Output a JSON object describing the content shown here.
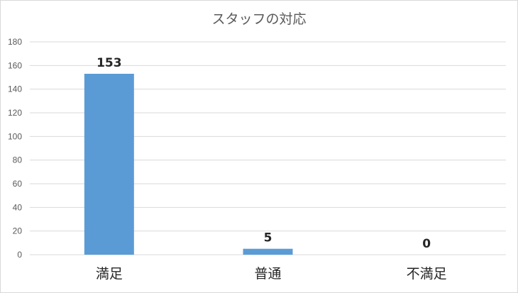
{
  "chart_data": {
    "type": "bar",
    "title": "スタッフの対応",
    "categories": [
      "満足",
      "普通",
      "不満足"
    ],
    "values": [
      153,
      5,
      0
    ],
    "data_labels": [
      "153",
      "5",
      "0"
    ],
    "ylim": [
      0,
      180
    ],
    "y_ticks": [
      "0",
      "20",
      "40",
      "60",
      "80",
      "100",
      "120",
      "140",
      "160",
      "180"
    ],
    "grid": true,
    "legend": "none",
    "bar_color": "#5b9bd5",
    "grid_color": "#d9d9d9"
  }
}
